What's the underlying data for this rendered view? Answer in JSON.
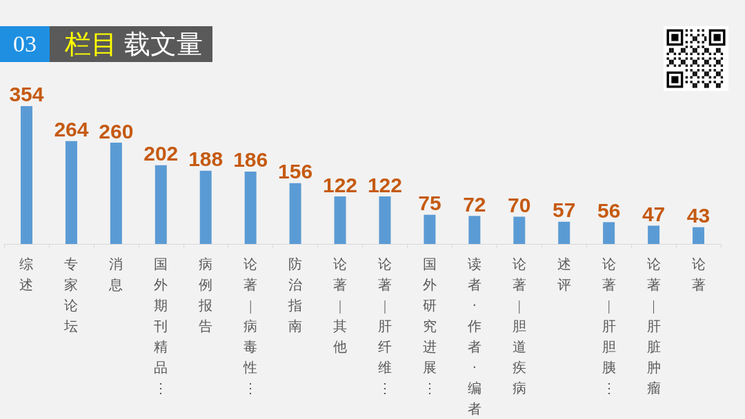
{
  "chart_data": {
    "type": "bar",
    "title": "03 栏目 载文量",
    "categories": [
      "综述",
      "专家论坛",
      "消息",
      "国外期刊精品⋮",
      "病例报告",
      "论著|病毒性⋮",
      "防治指南",
      "论著|其他",
      "论著|肝纤维⋮",
      "国外研究进展⋮",
      "读者·作者·编者",
      "论著|胆道疾病",
      "述评",
      "论著|肝胆胰⋮",
      "论著|肝脏肿瘤",
      "论著"
    ],
    "values": [
      354,
      264,
      260,
      202,
      188,
      186,
      156,
      122,
      122,
      75,
      72,
      70,
      57,
      56,
      47,
      43
    ],
    "color": "#5b9bd5",
    "data_labels": true,
    "grid": false
  }
}
